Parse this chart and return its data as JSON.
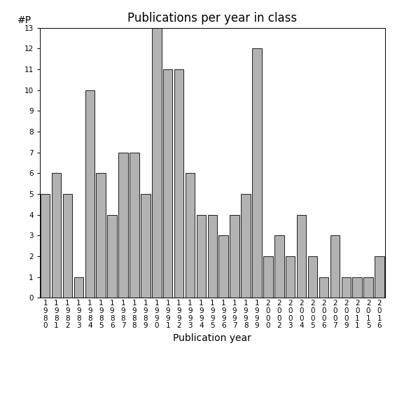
{
  "years": [
    "1980",
    "1981",
    "1982",
    "1983",
    "1984",
    "1985",
    "1986",
    "1987",
    "1988",
    "1989",
    "1990",
    "1991",
    "1992",
    "1993",
    "1994",
    "1995",
    "1996",
    "1997",
    "1998",
    "1999",
    "2000",
    "2002",
    "2003",
    "2004",
    "2005",
    "2006",
    "2007",
    "2009",
    "2011",
    "2015",
    "2016"
  ],
  "values": [
    5,
    6,
    5,
    1,
    10,
    6,
    4,
    7,
    7,
    5,
    13,
    11,
    11,
    6,
    4,
    4,
    3,
    4,
    5,
    12,
    2,
    3,
    2,
    4,
    2,
    1,
    3,
    1,
    1,
    1,
    2
  ],
  "bar_color": "#b2b2b2",
  "bar_edgecolor": "#000000",
  "title": "Publications per year in class",
  "xlabel": "Publication year",
  "ylabel": "#P",
  "ylim": [
    0,
    13
  ],
  "yticks": [
    0,
    1,
    2,
    3,
    4,
    5,
    6,
    7,
    8,
    9,
    10,
    11,
    12,
    13
  ],
  "title_fontsize": 12,
  "label_fontsize": 10,
  "tick_fontsize": 7.5,
  "bg_color": "#ffffff"
}
